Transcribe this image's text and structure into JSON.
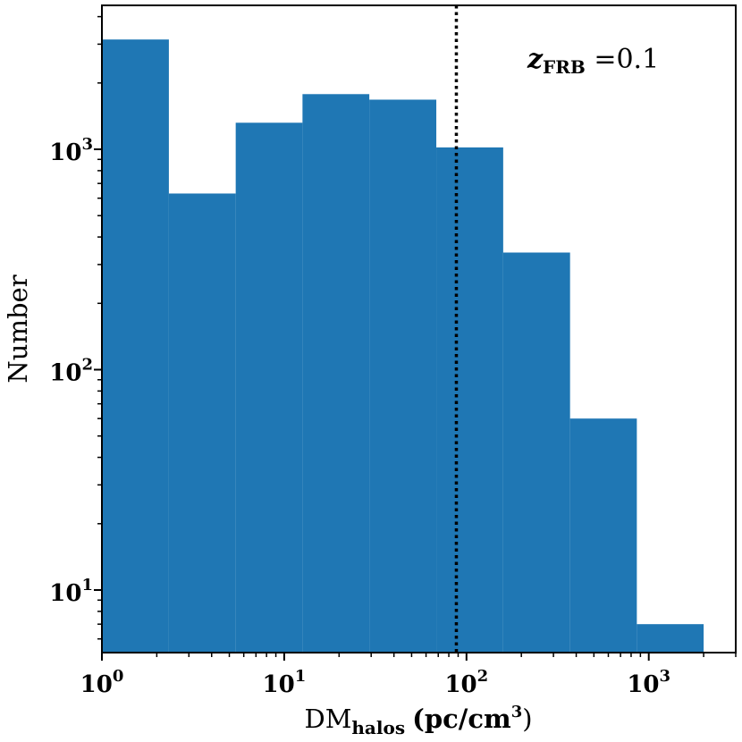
{
  "chart_data": {
    "type": "bar",
    "x_scale": "log",
    "y_scale": "log",
    "xlim": [
      1,
      3000
    ],
    "ylim": [
      5.2,
      4500
    ],
    "bars": [
      {
        "x0": 1.0,
        "x1": 2.33,
        "value": 3150
      },
      {
        "x0": 2.33,
        "x1": 5.42,
        "value": 630
      },
      {
        "x0": 5.42,
        "x1": 12.6,
        "value": 1320
      },
      {
        "x0": 12.6,
        "x1": 29.3,
        "value": 1780
      },
      {
        "x0": 29.3,
        "x1": 68.3,
        "value": 1680
      },
      {
        "x0": 68.3,
        "x1": 159,
        "value": 1020
      },
      {
        "x0": 159,
        "x1": 370,
        "value": 340
      },
      {
        "x0": 370,
        "x1": 860,
        "value": 60
      },
      {
        "x0": 860,
        "x1": 2000,
        "value": 7
      }
    ],
    "vline_x": 88,
    "bar_color": "#1f77b4",
    "x_ticks": [
      {
        "value": 1,
        "base": "10",
        "exp": "0"
      },
      {
        "value": 10,
        "base": "10",
        "exp": "1"
      },
      {
        "value": 100,
        "base": "10",
        "exp": "2"
      },
      {
        "value": 1000,
        "base": "10",
        "exp": "3"
      }
    ],
    "y_ticks": [
      {
        "value": 10,
        "base": "10",
        "exp": "1"
      },
      {
        "value": 100,
        "base": "10",
        "exp": "2"
      },
      {
        "value": 1000,
        "base": "10",
        "exp": "3"
      }
    ],
    "xlabel": {
      "main": "DM",
      "sub": "halos",
      "unit": "(pc/cm",
      "unit_exp": "3",
      "close": ")"
    },
    "ylabel": "Number",
    "annotation": {
      "var": "z",
      "sub": "FRB",
      "rest": " =0.1"
    }
  }
}
